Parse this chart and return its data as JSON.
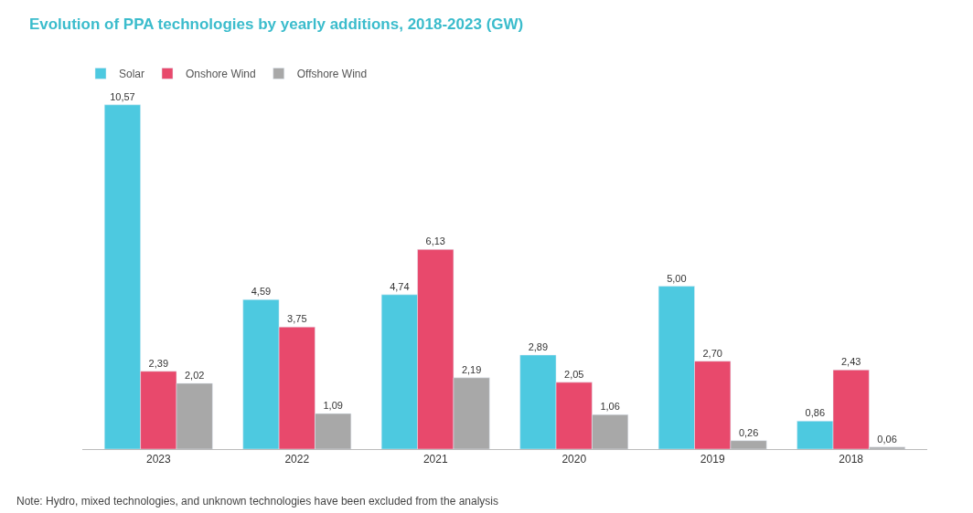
{
  "chart_data": {
    "type": "bar",
    "title": "Evolution of PPA technologies by yearly additions, 2018-2023 (GW)",
    "categories": [
      "2023",
      "2022",
      "2021",
      "2020",
      "2019",
      "2018"
    ],
    "series": [
      {
        "name": "Solar",
        "color": "#4dc9e0",
        "values": [
          10.57,
          4.59,
          4.74,
          2.89,
          5.0,
          0.86
        ],
        "value_labels": [
          "10,57",
          "4,59",
          "4,74",
          "2,89",
          "5,00",
          "0,86"
        ]
      },
      {
        "name": "Onshore Wind",
        "color": "#e8496c",
        "values": [
          2.39,
          3.75,
          6.13,
          2.05,
          2.7,
          2.43
        ],
        "value_labels": [
          "2,39",
          "3,75",
          "6,13",
          "2,05",
          "2,70",
          "2,43"
        ]
      },
      {
        "name": "Offshore Wind",
        "color": "#a8a8a8",
        "values": [
          2.02,
          1.09,
          2.19,
          1.06,
          0.26,
          0.06
        ],
        "value_labels": [
          "2,02",
          "1,09",
          "2,19",
          "1,06",
          "0,26",
          "0,06"
        ]
      }
    ],
    "legend": "top left",
    "annotations": [
      "Note: Hydro, mixed technologies, and unknown technologies have been excluded from the analysis"
    ]
  }
}
